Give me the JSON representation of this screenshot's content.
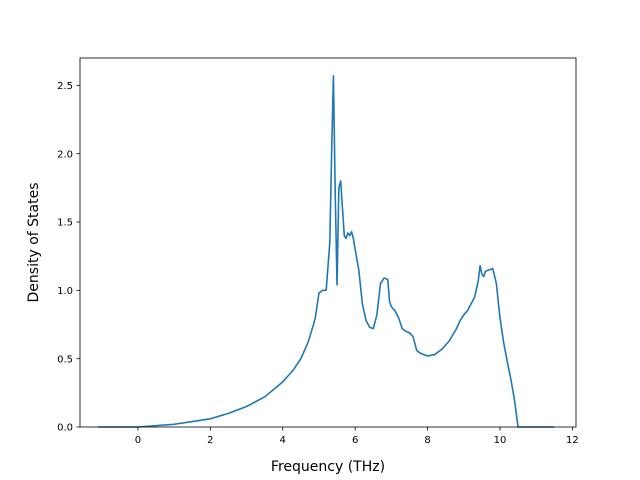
{
  "chart_data": {
    "type": "line",
    "title": "",
    "xlabel": "Frequency (THz)",
    "ylabel": "Density of States",
    "xlim": [
      -1.6,
      12.1
    ],
    "ylim": [
      0.0,
      2.7
    ],
    "xticks": [
      0,
      2,
      4,
      6,
      8,
      10,
      12
    ],
    "yticks": [
      0.0,
      0.5,
      1.0,
      1.5,
      2.0,
      2.5
    ],
    "xtick_labels": [
      "0",
      "2",
      "4",
      "6",
      "8",
      "10",
      "12"
    ],
    "ytick_labels": [
      "0.0",
      "0.5",
      "1.0",
      "1.5",
      "2.0",
      "2.5"
    ],
    "grid": false,
    "series": [
      {
        "color": "#1f77b4",
        "x": [
          -1.1,
          -0.5,
          0.0,
          0.5,
          1.0,
          1.5,
          2.0,
          2.5,
          3.0,
          3.5,
          4.0,
          4.3,
          4.5,
          4.7,
          4.85,
          4.9,
          5.0,
          5.1,
          5.2,
          5.3,
          5.35,
          5.4,
          5.45,
          5.5,
          5.55,
          5.6,
          5.65,
          5.7,
          5.75,
          5.8,
          5.85,
          5.9,
          5.95,
          6.0,
          6.1,
          6.2,
          6.3,
          6.4,
          6.5,
          6.6,
          6.7,
          6.8,
          6.9,
          6.95,
          7.0,
          7.1,
          7.2,
          7.3,
          7.4,
          7.5,
          7.6,
          7.7,
          7.8,
          8.0,
          8.2,
          8.4,
          8.6,
          8.8,
          8.9,
          9.0,
          9.1,
          9.2,
          9.3,
          9.4,
          9.45,
          9.5,
          9.55,
          9.6,
          9.7,
          9.8,
          9.9,
          10.0,
          10.1,
          10.2,
          10.3,
          10.4,
          10.5,
          10.6,
          11.0,
          11.5
        ],
        "y": [
          0.0,
          0.0,
          0.0,
          0.01,
          0.02,
          0.04,
          0.06,
          0.1,
          0.15,
          0.22,
          0.33,
          0.42,
          0.5,
          0.62,
          0.75,
          0.8,
          0.98,
          1.0,
          1.0,
          1.35,
          2.0,
          2.57,
          1.7,
          1.04,
          1.75,
          1.8,
          1.6,
          1.4,
          1.38,
          1.42,
          1.4,
          1.43,
          1.38,
          1.3,
          1.15,
          0.9,
          0.78,
          0.73,
          0.72,
          0.82,
          1.05,
          1.09,
          1.08,
          0.92,
          0.88,
          0.85,
          0.8,
          0.72,
          0.7,
          0.69,
          0.66,
          0.56,
          0.54,
          0.52,
          0.53,
          0.57,
          0.63,
          0.72,
          0.78,
          0.82,
          0.85,
          0.9,
          0.95,
          1.07,
          1.18,
          1.12,
          1.1,
          1.14,
          1.15,
          1.16,
          1.05,
          0.8,
          0.62,
          0.48,
          0.35,
          0.2,
          0.0,
          0.0,
          0.0,
          0.0
        ]
      }
    ]
  }
}
